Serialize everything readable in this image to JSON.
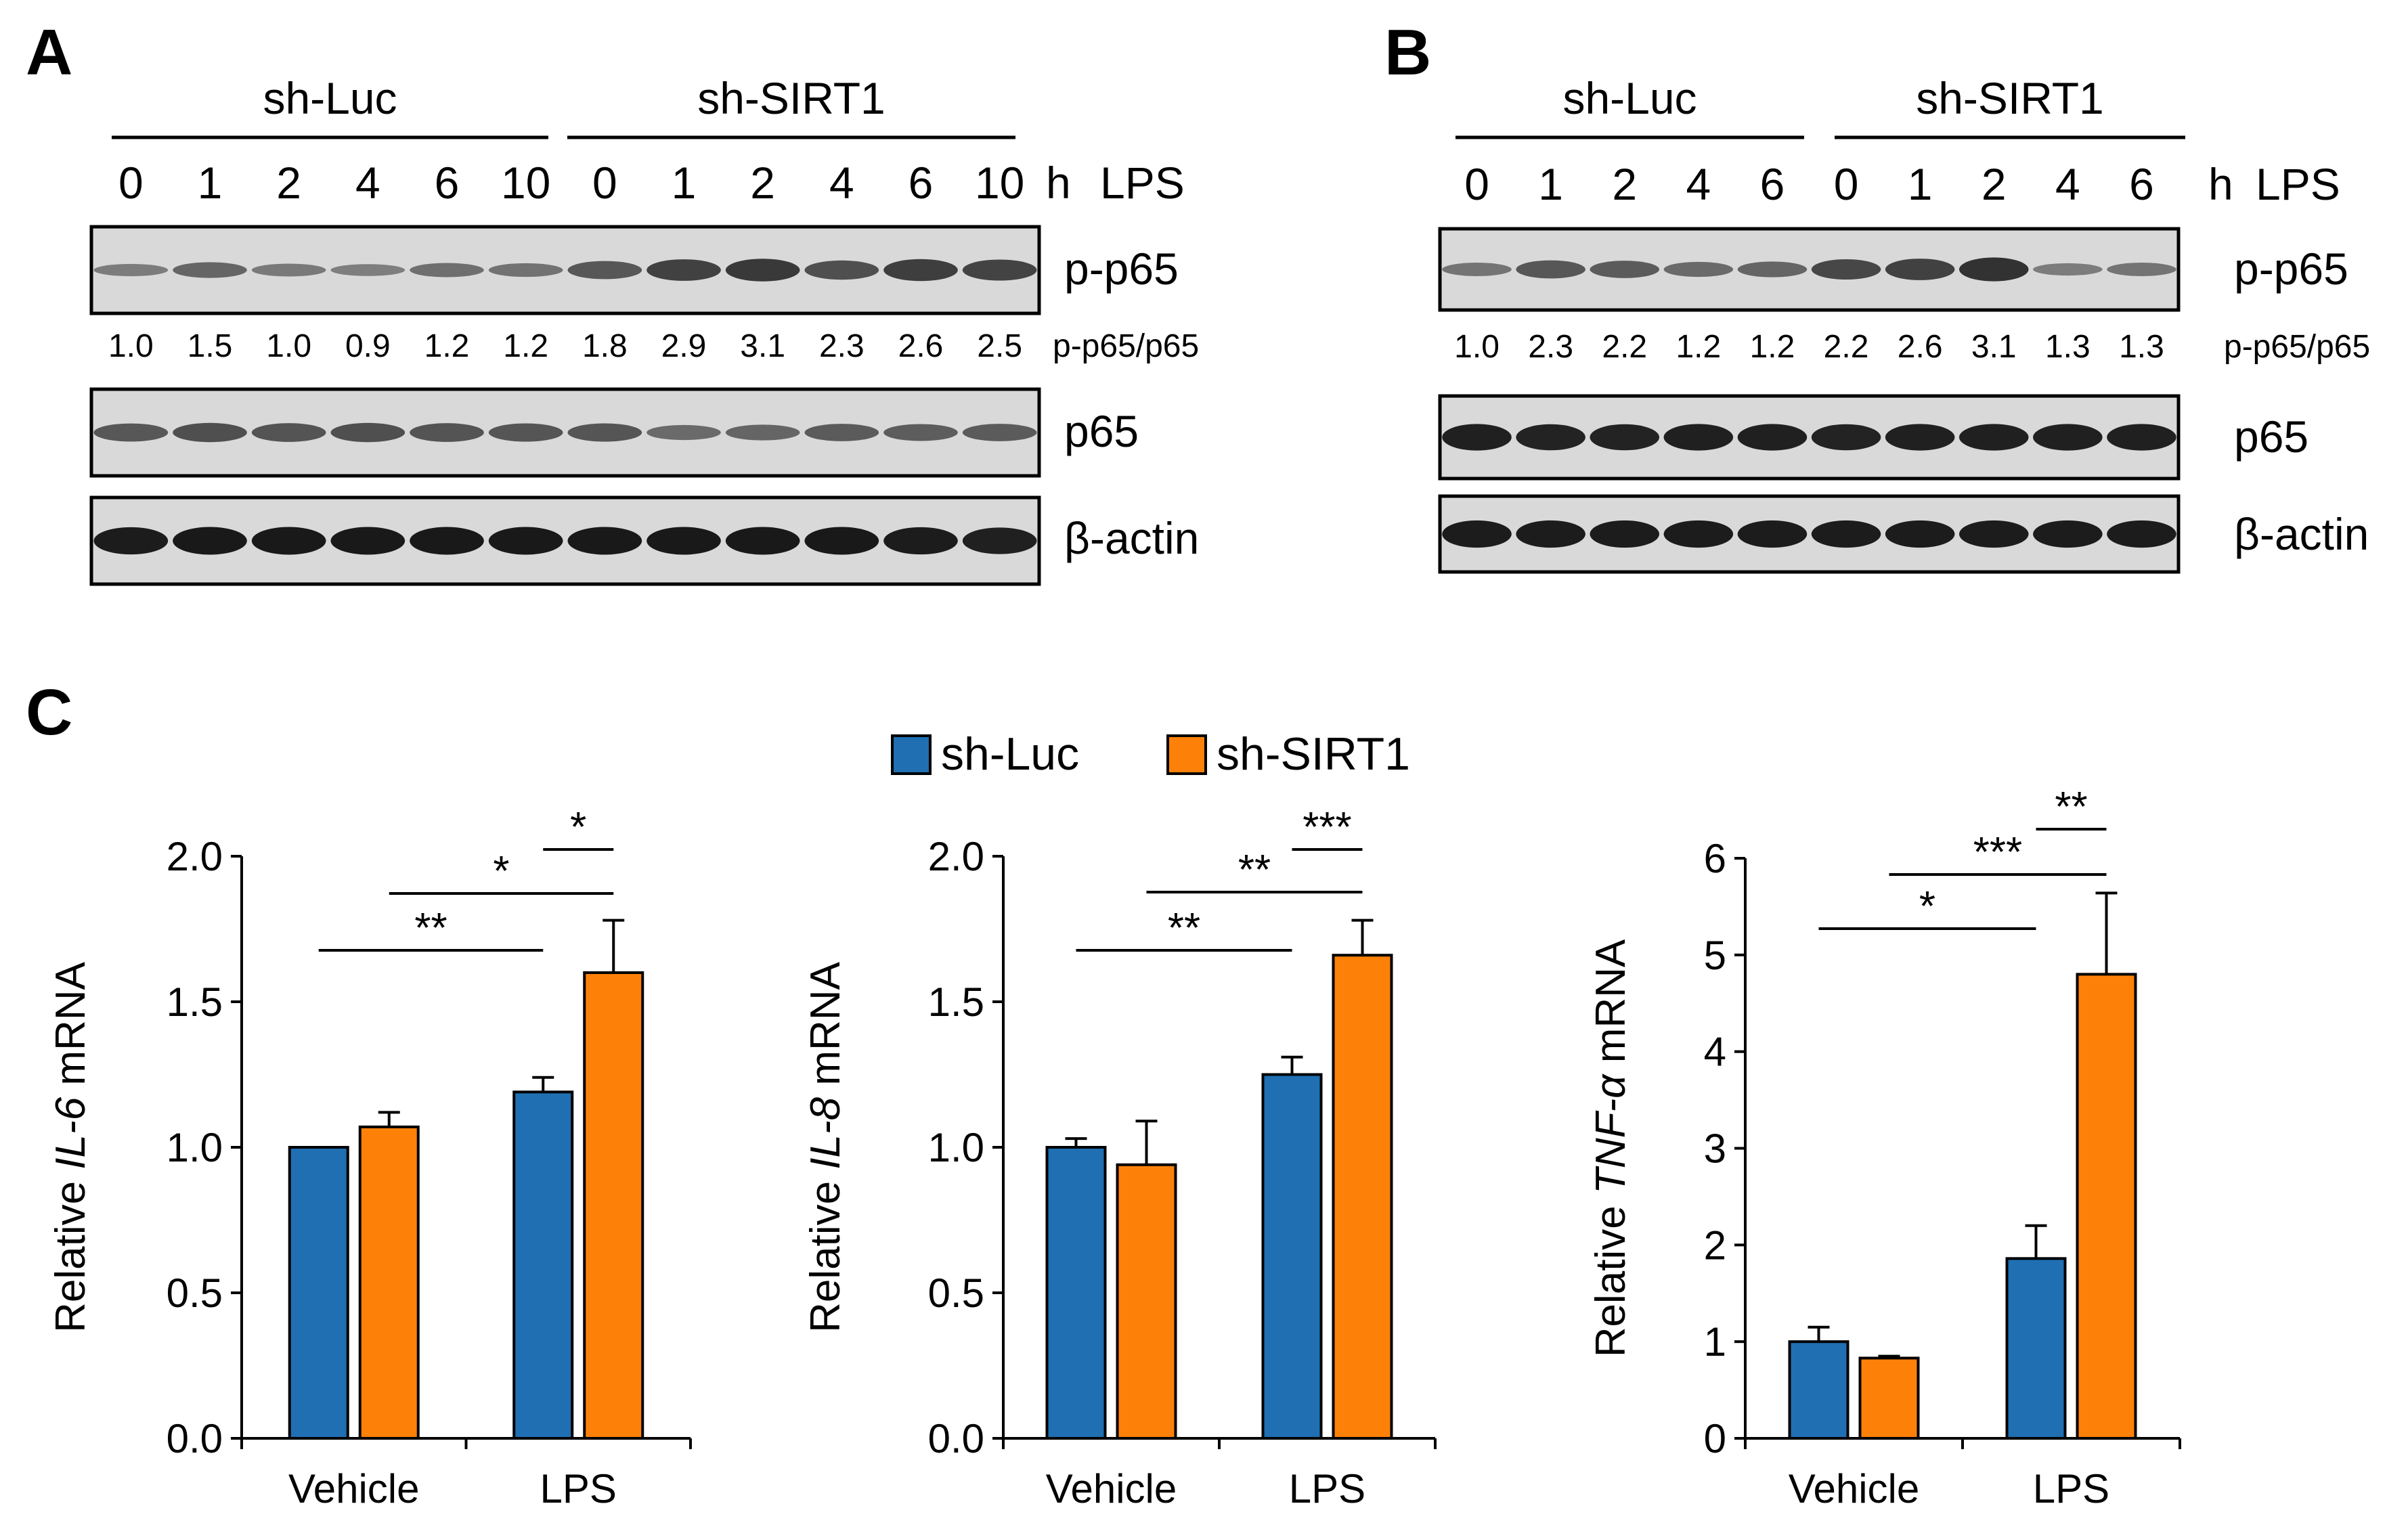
{
  "colors": {
    "sh_luc": "#1f6fb2",
    "sh_sirt1": "#fd8108",
    "membrane": "#d9d9d9",
    "band": "#141414"
  },
  "panels": [
    {
      "letter": "A",
      "groups": [
        "sh-Luc",
        "sh-SIRT1"
      ],
      "lanes": [
        "0",
        "1",
        "2",
        "4",
        "6",
        "10",
        "0",
        "1",
        "2",
        "4",
        "6",
        "10"
      ],
      "unit": "h",
      "treatment": "LPS",
      "ratio_label": "p-p65/p65",
      "ratios": [
        "1.0",
        "1.5",
        "1.0",
        "0.9",
        "1.2",
        "1.2",
        "1.8",
        "2.9",
        "3.1",
        "2.3",
        "2.6",
        "2.5"
      ],
      "blots": [
        {
          "label": "p-p65",
          "intensity": [
            0.3,
            0.45,
            0.32,
            0.28,
            0.38,
            0.36,
            0.55,
            0.7,
            0.75,
            0.6,
            0.72,
            0.68
          ]
        },
        {
          "label": "p65",
          "intensity": [
            0.55,
            0.6,
            0.58,
            0.6,
            0.58,
            0.56,
            0.56,
            0.42,
            0.45,
            0.52,
            0.5,
            0.52
          ]
        },
        {
          "label": "β-actin",
          "intensity": [
            0.95,
            0.97,
            0.97,
            0.97,
            0.97,
            0.97,
            0.97,
            0.97,
            0.97,
            0.97,
            0.95,
            0.92
          ]
        }
      ]
    },
    {
      "letter": "B",
      "groups": [
        "sh-Luc",
        "sh-SIRT1"
      ],
      "lanes": [
        "0",
        "1",
        "2",
        "4",
        "6",
        "0",
        "1",
        "2",
        "4",
        "6"
      ],
      "unit": "h",
      "treatment": "LPS",
      "ratio_label": "p-p65/p65",
      "ratios": [
        "1.0",
        "2.3",
        "2.2",
        "1.2",
        "1.2",
        "2.2",
        "2.6",
        "3.1",
        "1.3",
        "1.3"
      ],
      "blots": [
        {
          "label": "p-p65",
          "intensity": [
            0.35,
            0.55,
            0.52,
            0.42,
            0.45,
            0.65,
            0.7,
            0.8,
            0.3,
            0.35
          ]
        },
        {
          "label": "p65",
          "intensity": [
            0.92,
            0.9,
            0.9,
            0.92,
            0.92,
            0.9,
            0.92,
            0.92,
            0.92,
            0.92
          ]
        },
        {
          "label": "β-actin",
          "intensity": [
            0.95,
            0.95,
            0.95,
            0.95,
            0.95,
            0.95,
            0.95,
            0.95,
            0.95,
            0.95
          ]
        }
      ]
    }
  ],
  "panel_c": {
    "letter": "C"
  },
  "legend": [
    {
      "name": "sh-Luc"
    },
    {
      "name": "sh-SIRT1"
    }
  ],
  "chart_data": [
    {
      "type": "bar",
      "categories": [
        "Vehicle",
        "LPS"
      ],
      "ylabel_prefix": "Relative ",
      "ylabel_gene": "IL-6",
      "ylabel_suffix": " mRNA",
      "ylim": [
        0,
        2.0
      ],
      "yticks": [
        "0.0",
        "0.5",
        "1.0",
        "1.5",
        "2.0"
      ],
      "series": [
        {
          "name": "sh-Luc",
          "values": [
            1.0,
            1.19
          ],
          "errors": [
            0.0,
            0.05
          ]
        },
        {
          "name": "sh-SIRT1",
          "values": [
            1.07,
            1.6
          ],
          "errors": [
            0.05,
            0.18
          ]
        }
      ],
      "significance": [
        {
          "label": "**",
          "y": 1.68
        },
        {
          "label": "*",
          "y": 1.88
        },
        {
          "label": "*",
          "y": 2.0
        }
      ]
    },
    {
      "type": "bar",
      "categories": [
        "Vehicle",
        "LPS"
      ],
      "ylabel_prefix": "Relative ",
      "ylabel_gene": "IL-8",
      "ylabel_suffix": " mRNA",
      "ylim": [
        0,
        2.0
      ],
      "yticks": [
        "0.0",
        "0.5",
        "1.0",
        "1.5",
        "2.0"
      ],
      "series": [
        {
          "name": "sh-Luc",
          "values": [
            1.0,
            1.25
          ],
          "errors": [
            0.03,
            0.06
          ]
        },
        {
          "name": "sh-SIRT1",
          "values": [
            0.94,
            1.66
          ],
          "errors": [
            0.15,
            0.12
          ]
        }
      ],
      "significance": [
        {
          "label": "**",
          "y": 1.68
        },
        {
          "label": "**",
          "y": 1.86
        },
        {
          "label": "***",
          "y": 2.0
        }
      ]
    },
    {
      "type": "bar",
      "categories": [
        "Vehicle",
        "LPS"
      ],
      "ylabel_prefix": "Relative ",
      "ylabel_gene": "TNF-α",
      "ylabel_suffix": " mRNA",
      "ylim": [
        0,
        6
      ],
      "yticks": [
        "0",
        "1",
        "2",
        "3",
        "4",
        "5",
        "6"
      ],
      "series": [
        {
          "name": "sh-Luc",
          "values": [
            1.0,
            1.86
          ],
          "errors": [
            0.15,
            0.34
          ]
        },
        {
          "name": "sh-SIRT1",
          "values": [
            0.83,
            4.8
          ],
          "errors": [
            0.02,
            0.84
          ]
        }
      ],
      "significance": [
        {
          "label": "*",
          "y": 5.25
        },
        {
          "label": "***",
          "y": 5.8
        },
        {
          "label": "**",
          "y": 6.15
        }
      ]
    }
  ]
}
